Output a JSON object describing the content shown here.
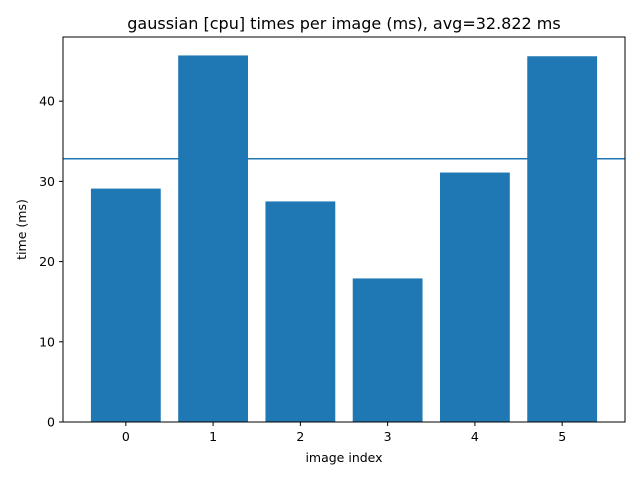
{
  "chart_data": {
    "type": "bar",
    "title": "gaussian [cpu] times per image (ms), avg=32.822 ms",
    "xlabel": "image index",
    "ylabel": "time (ms)",
    "categories": [
      "0",
      "1",
      "2",
      "3",
      "4",
      "5"
    ],
    "values": [
      29.1,
      45.7,
      27.5,
      17.9,
      31.1,
      45.6
    ],
    "average_line": 32.822,
    "xlim": [
      -0.72,
      5.72
    ],
    "ylim": [
      0,
      48
    ],
    "yticks": [
      0,
      10,
      20,
      30,
      40
    ],
    "bar_color": "#1f77b4",
    "line_color": "#1f77b4",
    "grid": false,
    "legend": false
  }
}
